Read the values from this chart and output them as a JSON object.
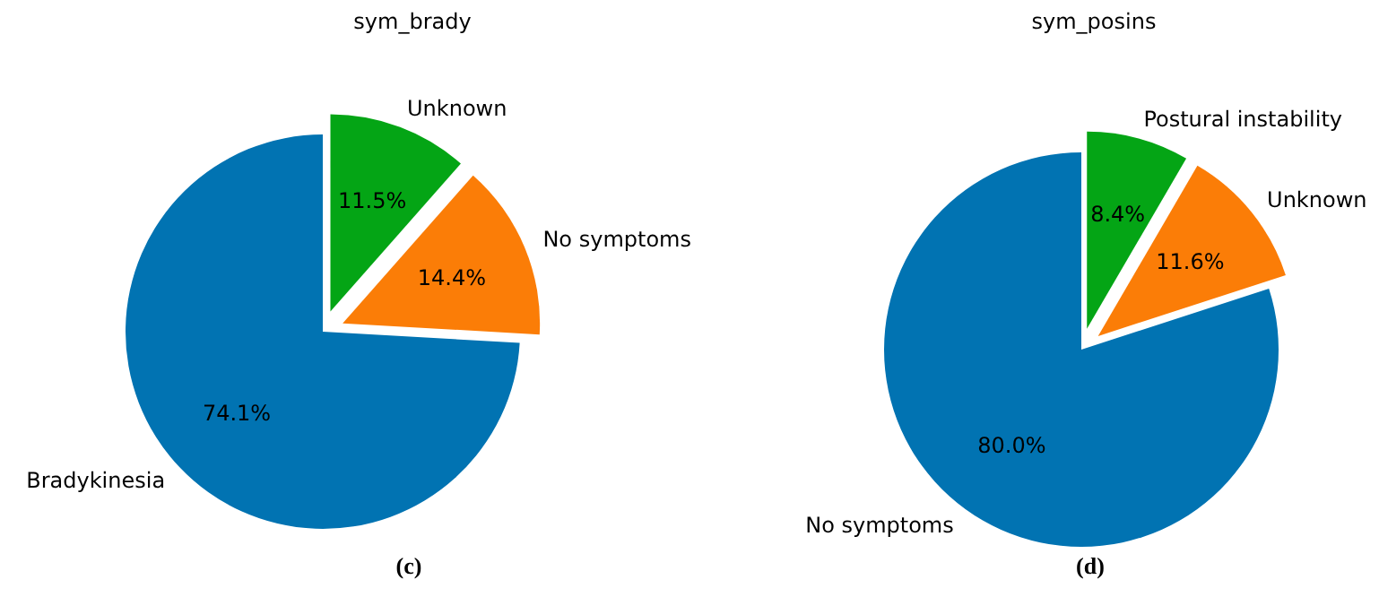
{
  "chart_data": [
    {
      "type": "pie",
      "title": "sym_brady",
      "categories": [
        "Bradykinesia",
        "No symptoms",
        "Unknown"
      ],
      "values": [
        74.1,
        14.4,
        11.5
      ],
      "colors": [
        "#0173b2",
        "#fb7d07",
        "#04a515"
      ],
      "value_labels": [
        "74.1%",
        "14.4%",
        "11.5%"
      ],
      "annotations": [
        "(c)"
      ]
    },
    {
      "type": "pie",
      "title": "sym_posins",
      "categories": [
        "No symptoms",
        "Unknown",
        "Postural instability"
      ],
      "values": [
        80.0,
        11.6,
        8.4
      ],
      "colors": [
        "#0173b2",
        "#fb7d07",
        "#04a515"
      ],
      "value_labels": [
        "80.0%",
        "11.6%",
        "8.4%"
      ],
      "annotations": [
        "(d)"
      ]
    }
  ]
}
